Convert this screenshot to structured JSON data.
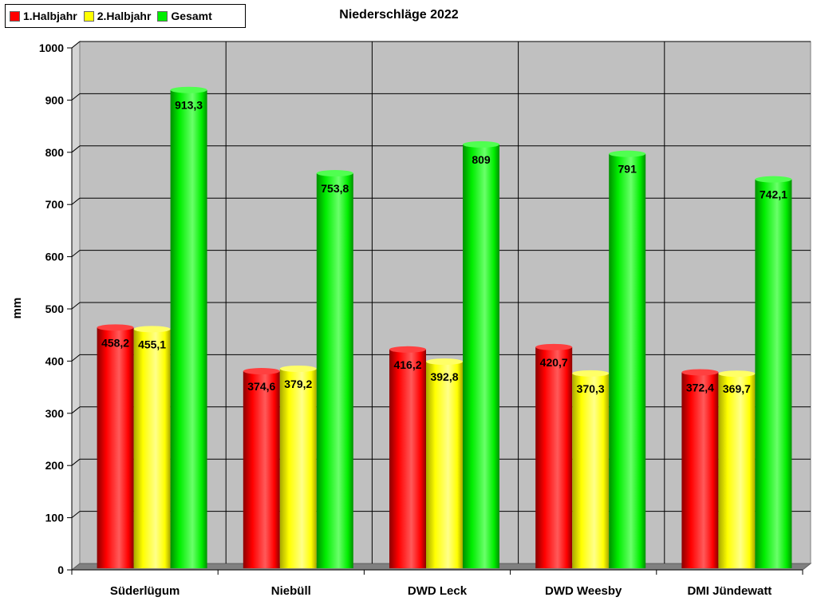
{
  "chart_data": {
    "type": "bar",
    "title": "Niederschläge 2022",
    "ylabel": "mm",
    "xlabel": "",
    "ylim": [
      0,
      1000
    ],
    "y_ticks": [
      "0",
      "100",
      "200",
      "300",
      "400",
      "500",
      "600",
      "700",
      "800",
      "900",
      "1000"
    ],
    "categories": [
      "Süderlügum",
      "Niebüll",
      "DWD Leck",
      "DWD Weesby",
      "DMI Jündewatt"
    ],
    "series": [
      {
        "name": "1.Halbjahr",
        "color": "#ff0000",
        "values": [
          458.2,
          374.6,
          416.2,
          420.7,
          372.4
        ],
        "labels": [
          "458,2",
          "374,6",
          "416,2",
          "420,7",
          "372,4"
        ]
      },
      {
        "name": "2.Halbjahr",
        "color": "#ffff00",
        "values": [
          455.1,
          379.2,
          392.8,
          370.3,
          369.7
        ],
        "labels": [
          "455,1",
          "379,2",
          "392,8",
          "370,3",
          "369,7"
        ]
      },
      {
        "name": "Gesamt",
        "color": "#00ee00",
        "values": [
          913.3,
          753.8,
          809,
          791,
          742.1
        ],
        "labels": [
          "913,3",
          "753,8",
          "809",
          "791",
          "742,1"
        ]
      }
    ],
    "grid": true,
    "legend_position": "top-left",
    "plot_background": "#c0c0c0"
  }
}
